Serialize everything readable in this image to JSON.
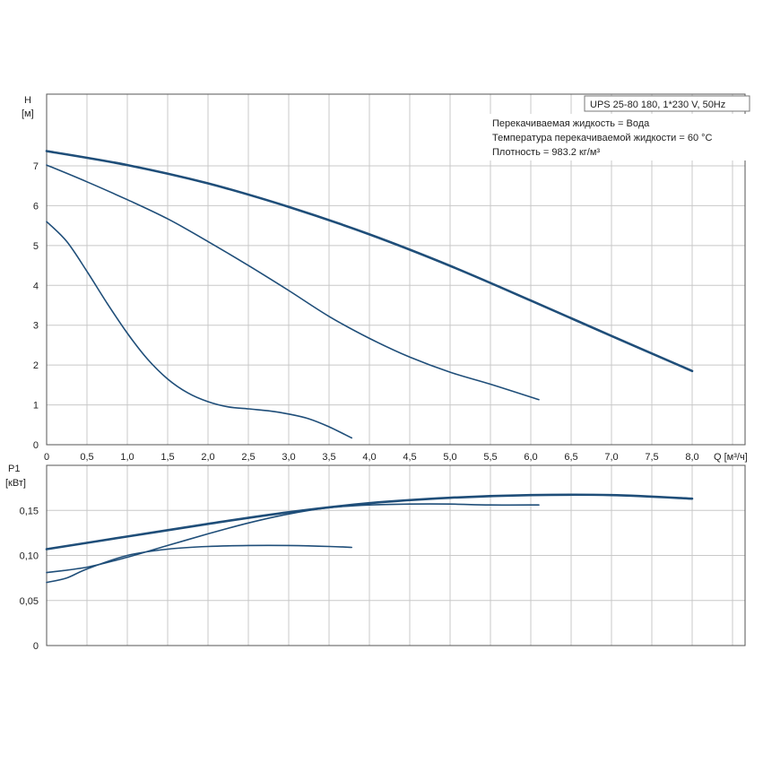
{
  "chart_data": [
    {
      "type": "line",
      "id": "head",
      "ylabel_top": "H",
      "ylabel_unit": "[м]",
      "xlabel": "Q [м³/ч]",
      "xlim": [
        0,
        8.5
      ],
      "ylim": [
        0,
        8.8
      ],
      "x_ticks": [
        "0",
        "0,5",
        "1,0",
        "1,5",
        "2,0",
        "2,5",
        "3,0",
        "3,5",
        "4,0",
        "4,5",
        "5,0",
        "5,5",
        "6,0",
        "6,5",
        "7,0",
        "7,5",
        "8,0"
      ],
      "y_ticks": [
        "0",
        "1",
        "2",
        "3",
        "4",
        "5",
        "6",
        "7"
      ],
      "grid": true,
      "series": [
        {
          "points": [
            [
              0,
              7.37
            ],
            [
              1,
              7.02
            ],
            [
              2,
              6.56
            ],
            [
              3,
              5.97
            ],
            [
              4,
              5.28
            ],
            [
              5,
              4.49
            ],
            [
              6,
              3.62
            ],
            [
              7,
              2.73
            ],
            [
              8,
              1.85
            ]
          ]
        },
        {
          "points": [
            [
              0,
              7.02
            ],
            [
              0.5,
              6.6
            ],
            [
              1,
              6.15
            ],
            [
              1.5,
              5.67
            ],
            [
              2,
              5.1
            ],
            [
              2.5,
              4.5
            ],
            [
              3,
              3.87
            ],
            [
              3.5,
              3.22
            ],
            [
              4,
              2.67
            ],
            [
              4.5,
              2.2
            ],
            [
              5,
              1.82
            ],
            [
              5.5,
              1.52
            ],
            [
              6.1,
              1.13
            ]
          ]
        },
        {
          "points": [
            [
              0,
              5.6
            ],
            [
              0.25,
              5.1
            ],
            [
              0.5,
              4.35
            ],
            [
              0.75,
              3.55
            ],
            [
              1,
              2.8
            ],
            [
              1.25,
              2.15
            ],
            [
              1.5,
              1.65
            ],
            [
              1.75,
              1.3
            ],
            [
              2,
              1.08
            ],
            [
              2.25,
              0.95
            ],
            [
              2.5,
              0.9
            ],
            [
              2.75,
              0.85
            ],
            [
              3,
              0.77
            ],
            [
              3.25,
              0.65
            ],
            [
              3.5,
              0.45
            ],
            [
              3.78,
              0.17
            ]
          ]
        }
      ]
    },
    {
      "type": "line",
      "id": "power",
      "ylabel_top": "P1",
      "ylabel_unit": "[кВт]",
      "xlim": [
        0,
        8.5
      ],
      "ylim": [
        0,
        0.2
      ],
      "y_ticks": [
        "0",
        "0,05",
        "0,10",
        "0,15"
      ],
      "grid": true,
      "series": [
        {
          "points": [
            [
              0,
              0.107
            ],
            [
              1,
              0.121
            ],
            [
              2,
              0.135
            ],
            [
              3,
              0.148
            ],
            [
              4,
              0.158
            ],
            [
              5,
              0.164
            ],
            [
              6,
              0.167
            ],
            [
              7,
              0.167
            ],
            [
              8,
              0.163
            ]
          ]
        },
        {
          "points": [
            [
              0,
              0.081
            ],
            [
              0.5,
              0.087
            ],
            [
              1,
              0.098
            ],
            [
              1.5,
              0.111
            ],
            [
              2,
              0.124
            ],
            [
              2.5,
              0.136
            ],
            [
              3,
              0.146
            ],
            [
              3.5,
              0.153
            ],
            [
              4,
              0.156
            ],
            [
              4.5,
              0.157
            ],
            [
              5,
              0.157
            ],
            [
              5.5,
              0.156
            ],
            [
              6.1,
              0.156
            ]
          ]
        },
        {
          "points": [
            [
              0,
              0.07
            ],
            [
              0.25,
              0.075
            ],
            [
              0.5,
              0.085
            ],
            [
              1,
              0.1
            ],
            [
              1.5,
              0.107
            ],
            [
              2,
              0.11
            ],
            [
              2.5,
              0.111
            ],
            [
              3,
              0.111
            ],
            [
              3.5,
              0.11
            ],
            [
              3.78,
              0.109
            ]
          ]
        }
      ]
    }
  ],
  "info_box": {
    "title": "UPS 25-80 180, 1*230 V, 50Hz",
    "lines": [
      "Перекачиваемая жидкость = Вода",
      "Температура перекачиваемой жидкости = 60 °C",
      "Плотность = 983.2 кг/м³"
    ]
  },
  "colors": {
    "curve": "#1f4e79",
    "grid": "#c8c8c8",
    "frame": "#555555"
  }
}
